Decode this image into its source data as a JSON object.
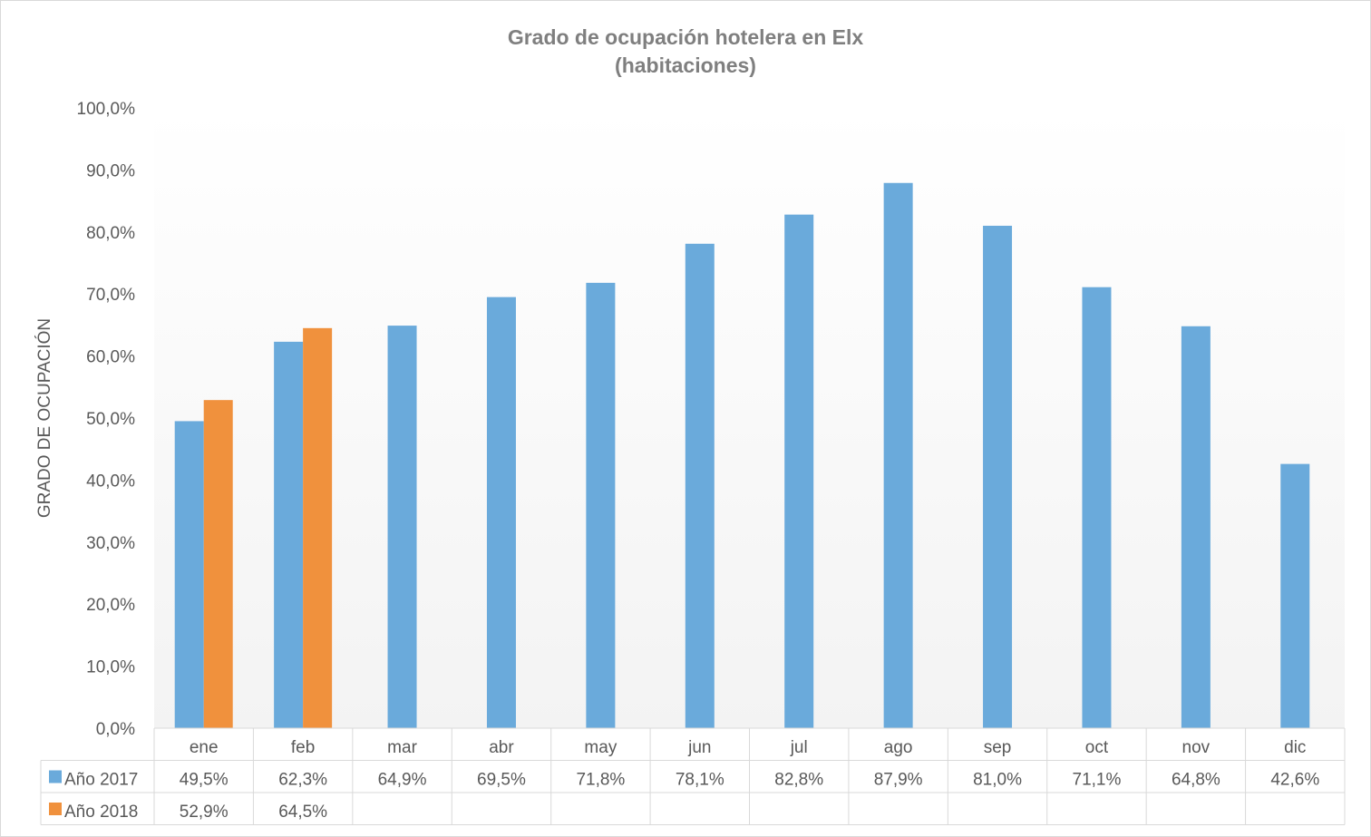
{
  "chart_data": {
    "type": "bar",
    "title": "Grado de ocupación hotelera en Elx",
    "subtitle": "(habitaciones)",
    "ylabel": "GRADO DE OCUPACIÓN",
    "xlabel": "",
    "ylim": [
      0,
      100
    ],
    "yticks": [
      0,
      10,
      20,
      30,
      40,
      50,
      60,
      70,
      80,
      90,
      100
    ],
    "ytick_labels": [
      "0,0%",
      "10,0%",
      "20,0%",
      "30,0%",
      "40,0%",
      "50,0%",
      "60,0%",
      "70,0%",
      "80,0%",
      "90,0%",
      "100,0%"
    ],
    "grid": false,
    "legend": "data-table",
    "categories": [
      "ene",
      "feb",
      "mar",
      "abr",
      "may",
      "jun",
      "jul",
      "ago",
      "sep",
      "oct",
      "nov",
      "dic"
    ],
    "series": [
      {
        "name": "Año 2017",
        "color": "#6aaadb",
        "values": [
          49.5,
          62.3,
          64.9,
          69.5,
          71.8,
          78.1,
          82.8,
          87.9,
          81.0,
          71.1,
          64.8,
          42.6
        ],
        "labels": [
          "49,5%",
          "62,3%",
          "64,9%",
          "69,5%",
          "71,8%",
          "78,1%",
          "82,8%",
          "87,9%",
          "81,0%",
          "71,1%",
          "64,8%",
          "42,6%"
        ]
      },
      {
        "name": "Año 2018",
        "color": "#f0913d",
        "values": [
          52.9,
          64.5,
          null,
          null,
          null,
          null,
          null,
          null,
          null,
          null,
          null,
          null
        ],
        "labels": [
          "52,9%",
          "64,5%",
          "",
          "",
          "",
          "",
          "",
          "",
          "",
          "",
          "",
          ""
        ]
      }
    ]
  }
}
